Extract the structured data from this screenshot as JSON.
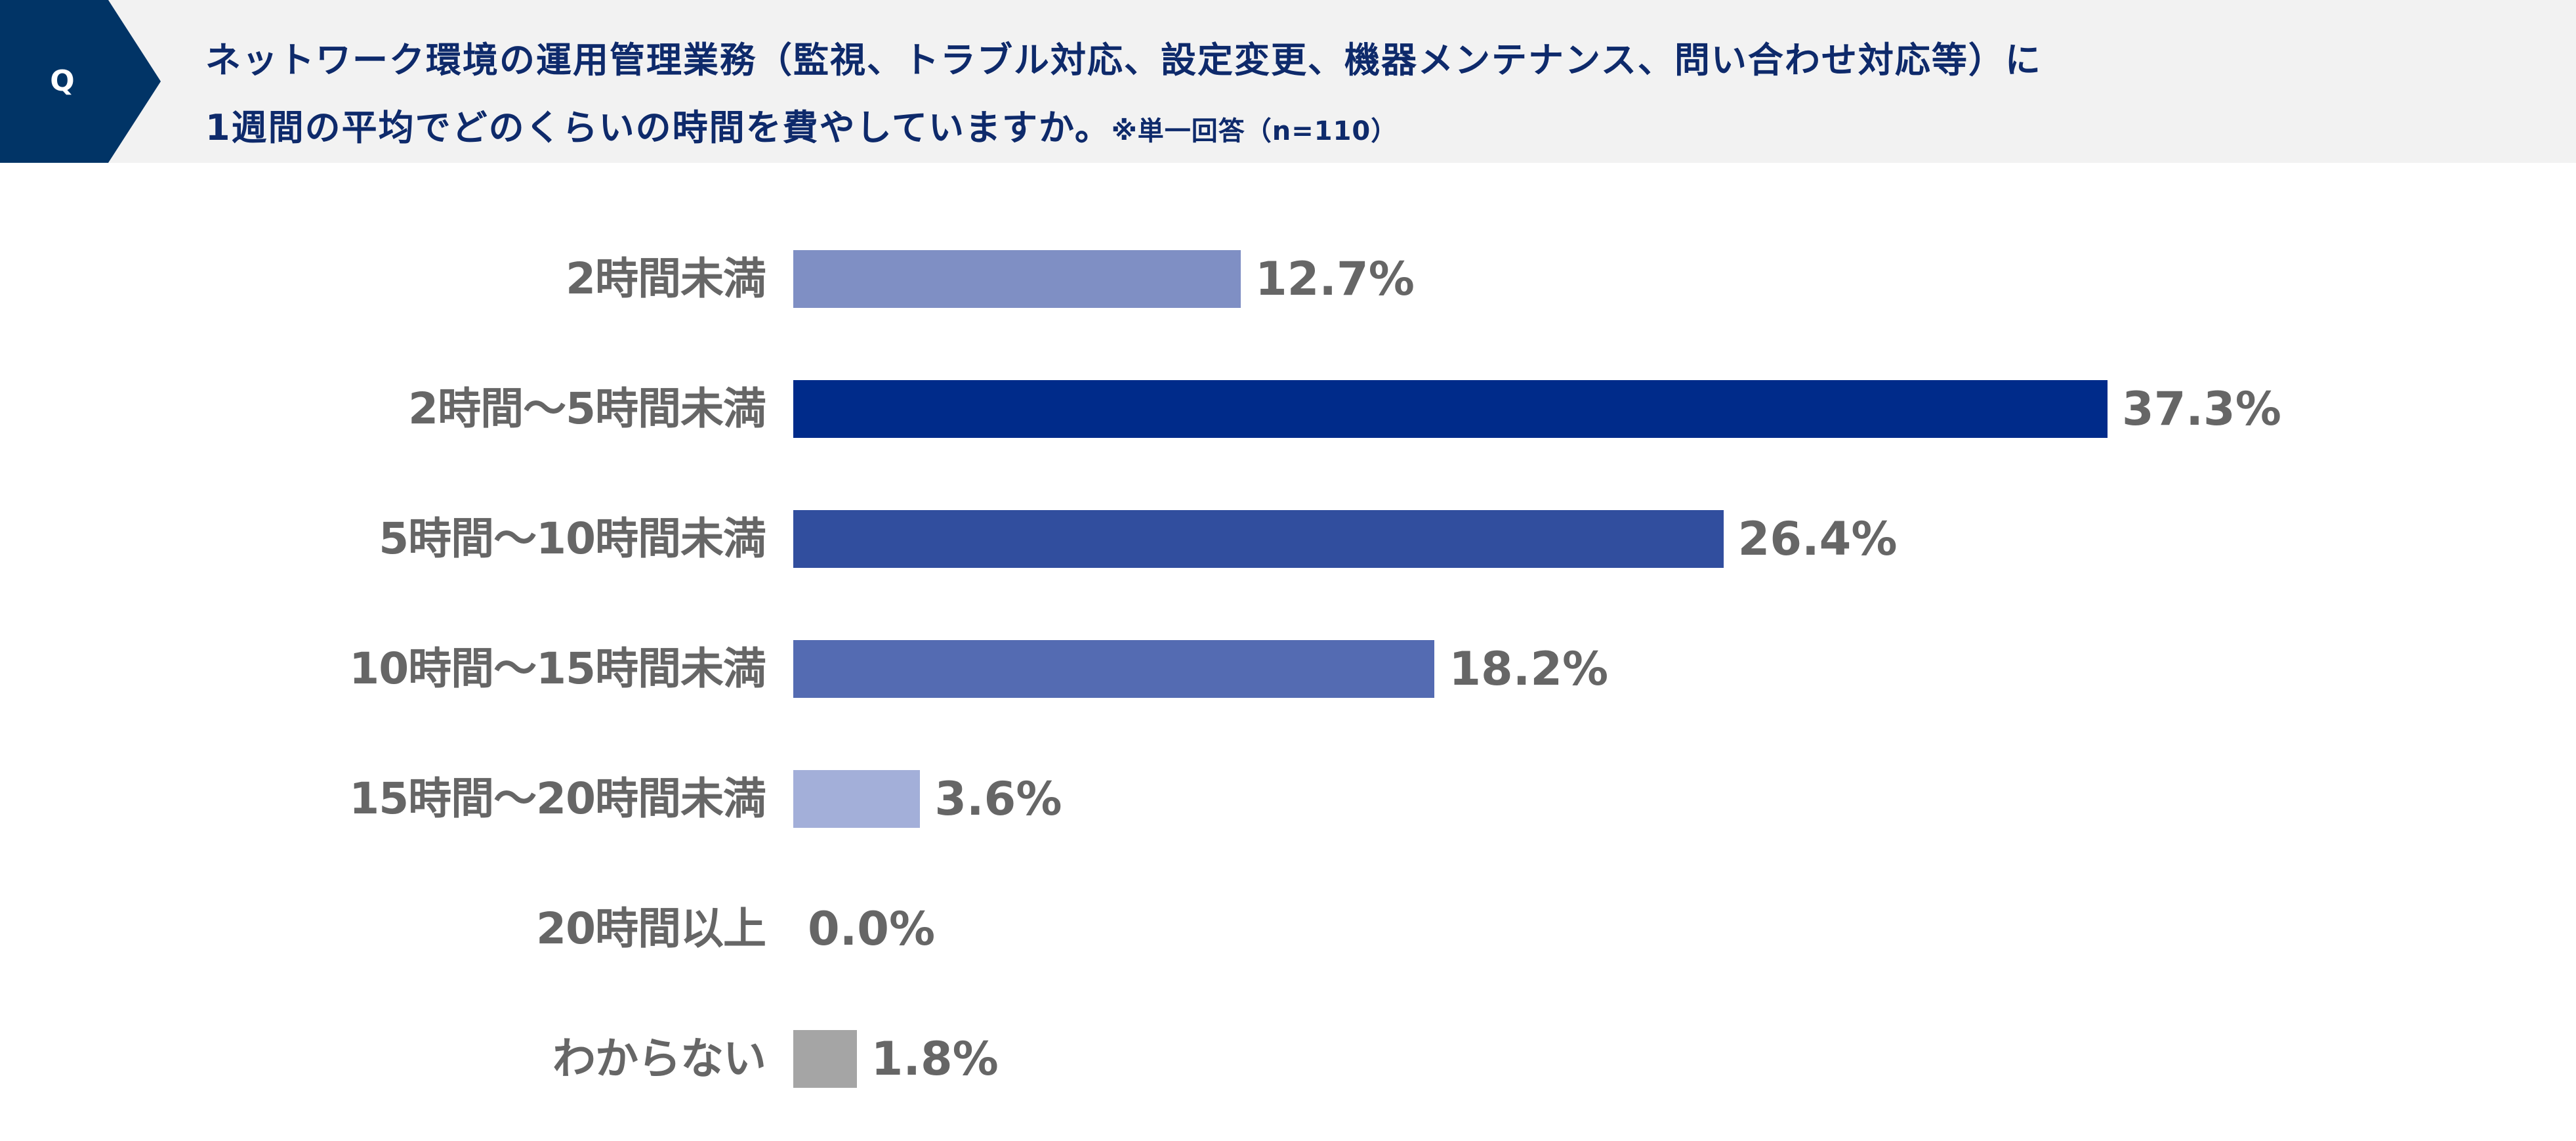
{
  "header": {
    "q_label": "Q",
    "title_line1": "ネットワーク環境の運用管理業務（監視、トラブル対応、設定変更、機器メンテナンス、問い合わせ対応等）に",
    "title_line2": "1週間の平均でどのくらいの時間を費やしていますか。",
    "note": "※単一回答（n=110）"
  },
  "chart_data": {
    "type": "bar",
    "orientation": "horizontal",
    "categories": [
      "2時間未満",
      "2時間〜5時間未満",
      "5時間〜10時間未満",
      "10時間〜15時間未満",
      "15時間〜20時間未満",
      "20時間以上",
      "わからない"
    ],
    "values": [
      12.7,
      37.3,
      26.4,
      18.2,
      3.6,
      0.0,
      1.8
    ],
    "value_labels": [
      "12.7%",
      "37.3%",
      "26.4%",
      "18.2%",
      "3.6%",
      "0.0%",
      "1.8%"
    ],
    "colors": [
      "#7f8fc4",
      "#002b8a",
      "#314e9e",
      "#546bb2",
      "#a3afd9",
      "#a3afd9",
      "#a5a5a5"
    ],
    "unit": "%",
    "xlim": [
      0,
      40
    ],
    "grid": false,
    "legend": "none"
  }
}
